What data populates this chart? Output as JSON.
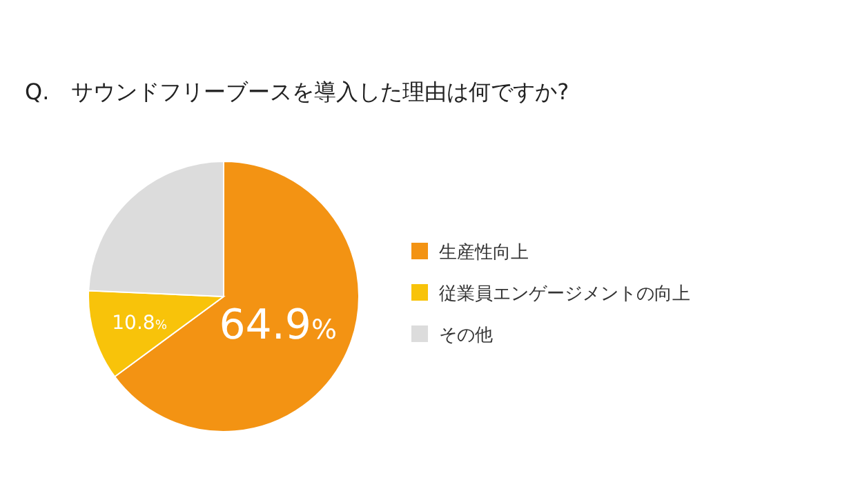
{
  "chart_data": {
    "type": "pie",
    "title": "Q.　サウンドフリーブースを導入した理由は何ですか?",
    "categories": [
      "生産性向上",
      "従業員エンゲージメントの向上",
      "その他"
    ],
    "values": [
      64.9,
      10.8,
      24.3
    ],
    "colors": [
      "#f39313",
      "#f8c30a",
      "#dcdcdc"
    ],
    "value_labels": [
      "64.9%",
      "10.8%",
      null
    ],
    "legend": "right"
  }
}
